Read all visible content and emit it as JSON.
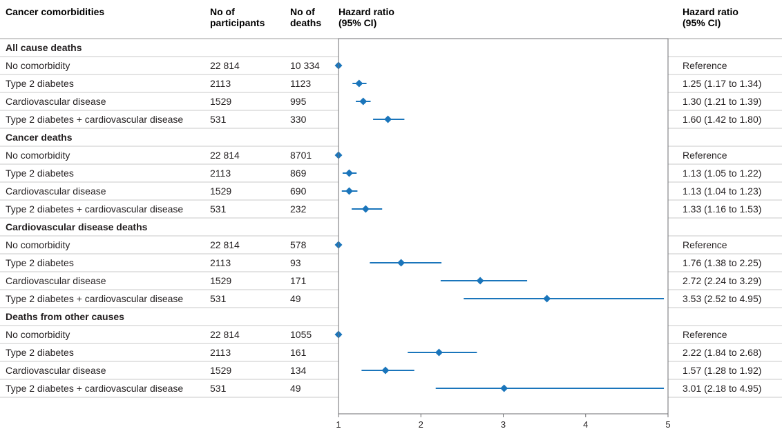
{
  "chart_data": {
    "type": "forest",
    "header": {
      "col1": "Cancer comorbidities",
      "col2_line1": "No of",
      "col2_line2": "participants",
      "col3_line1": "No of",
      "col3_line2": "deaths",
      "col4_line1": "Hazard ratio",
      "col4_line2": "(95% CI)",
      "col5_line1": "Hazard ratio",
      "col5_line2": "(95% CI)"
    },
    "x_ticks": [
      "1",
      "2",
      "3",
      "4",
      "5"
    ],
    "xlim": [
      1,
      5
    ],
    "reference_value": 1,
    "marker_color": "#1a75bb",
    "groups": [
      {
        "title": "All cause deaths",
        "rows": [
          {
            "label": "No comorbidity",
            "participants": "22 814",
            "deaths": "10 334",
            "hr": 1.0,
            "lo": 1.0,
            "hi": 1.0,
            "text": "Reference"
          },
          {
            "label": "Type 2 diabetes",
            "participants": "2113",
            "deaths": "1123",
            "hr": 1.25,
            "lo": 1.17,
            "hi": 1.34,
            "text": "1.25 (1.17 to 1.34)"
          },
          {
            "label": "Cardiovascular disease",
            "participants": "1529",
            "deaths": "995",
            "hr": 1.3,
            "lo": 1.21,
            "hi": 1.39,
            "text": "1.30 (1.21 to 1.39)"
          },
          {
            "label": "Type 2 diabetes + cardiovascular disease",
            "participants": "531",
            "deaths": "330",
            "hr": 1.6,
            "lo": 1.42,
            "hi": 1.8,
            "text": "1.60 (1.42 to 1.80)"
          }
        ]
      },
      {
        "title": "Cancer deaths",
        "rows": [
          {
            "label": "No comorbidity",
            "participants": "22 814",
            "deaths": "8701",
            "hr": 1.0,
            "lo": 1.0,
            "hi": 1.0,
            "text": "Reference"
          },
          {
            "label": "Type 2 diabetes",
            "participants": "2113",
            "deaths": "869",
            "hr": 1.13,
            "lo": 1.05,
            "hi": 1.22,
            "text": "1.13 (1.05 to 1.22)"
          },
          {
            "label": "Cardiovascular disease",
            "participants": "1529",
            "deaths": "690",
            "hr": 1.13,
            "lo": 1.04,
            "hi": 1.23,
            "text": "1.13 (1.04 to 1.23)"
          },
          {
            "label": "Type 2 diabetes + cardiovascular disease",
            "participants": "531",
            "deaths": "232",
            "hr": 1.33,
            "lo": 1.16,
            "hi": 1.53,
            "text": "1.33 (1.16 to 1.53)"
          }
        ]
      },
      {
        "title": "Cardiovascular disease deaths",
        "rows": [
          {
            "label": "No comorbidity",
            "participants": "22 814",
            "deaths": "578",
            "hr": 1.0,
            "lo": 1.0,
            "hi": 1.0,
            "text": "Reference"
          },
          {
            "label": "Type 2 diabetes",
            "participants": "2113",
            "deaths": "93",
            "hr": 1.76,
            "lo": 1.38,
            "hi": 2.25,
            "text": "1.76 (1.38 to 2.25)"
          },
          {
            "label": "Cardiovascular disease",
            "participants": "1529",
            "deaths": "171",
            "hr": 2.72,
            "lo": 2.24,
            "hi": 3.29,
            "text": "2.72 (2.24 to 3.29)"
          },
          {
            "label": "Type 2 diabetes + cardiovascular disease",
            "participants": "531",
            "deaths": "49",
            "hr": 3.53,
            "lo": 2.52,
            "hi": 4.95,
            "text": "3.53 (2.52 to 4.95)"
          }
        ]
      },
      {
        "title": "Deaths from other causes",
        "rows": [
          {
            "label": "No comorbidity",
            "participants": "22 814",
            "deaths": "1055",
            "hr": 1.0,
            "lo": 1.0,
            "hi": 1.0,
            "text": "Reference"
          },
          {
            "label": "Type 2 diabetes",
            "participants": "2113",
            "deaths": "161",
            "hr": 2.22,
            "lo": 1.84,
            "hi": 2.68,
            "text": "2.22 (1.84 to 2.68)"
          },
          {
            "label": "Cardiovascular disease",
            "participants": "1529",
            "deaths": "134",
            "hr": 1.57,
            "lo": 1.28,
            "hi": 1.92,
            "text": "1.57 (1.28 to 1.92)"
          },
          {
            "label": "Type 2 diabetes + cardiovascular disease",
            "participants": "531",
            "deaths": "49",
            "hr": 3.01,
            "lo": 2.18,
            "hi": 4.95,
            "text": "3.01 (2.18 to 4.95)"
          }
        ]
      }
    ]
  }
}
